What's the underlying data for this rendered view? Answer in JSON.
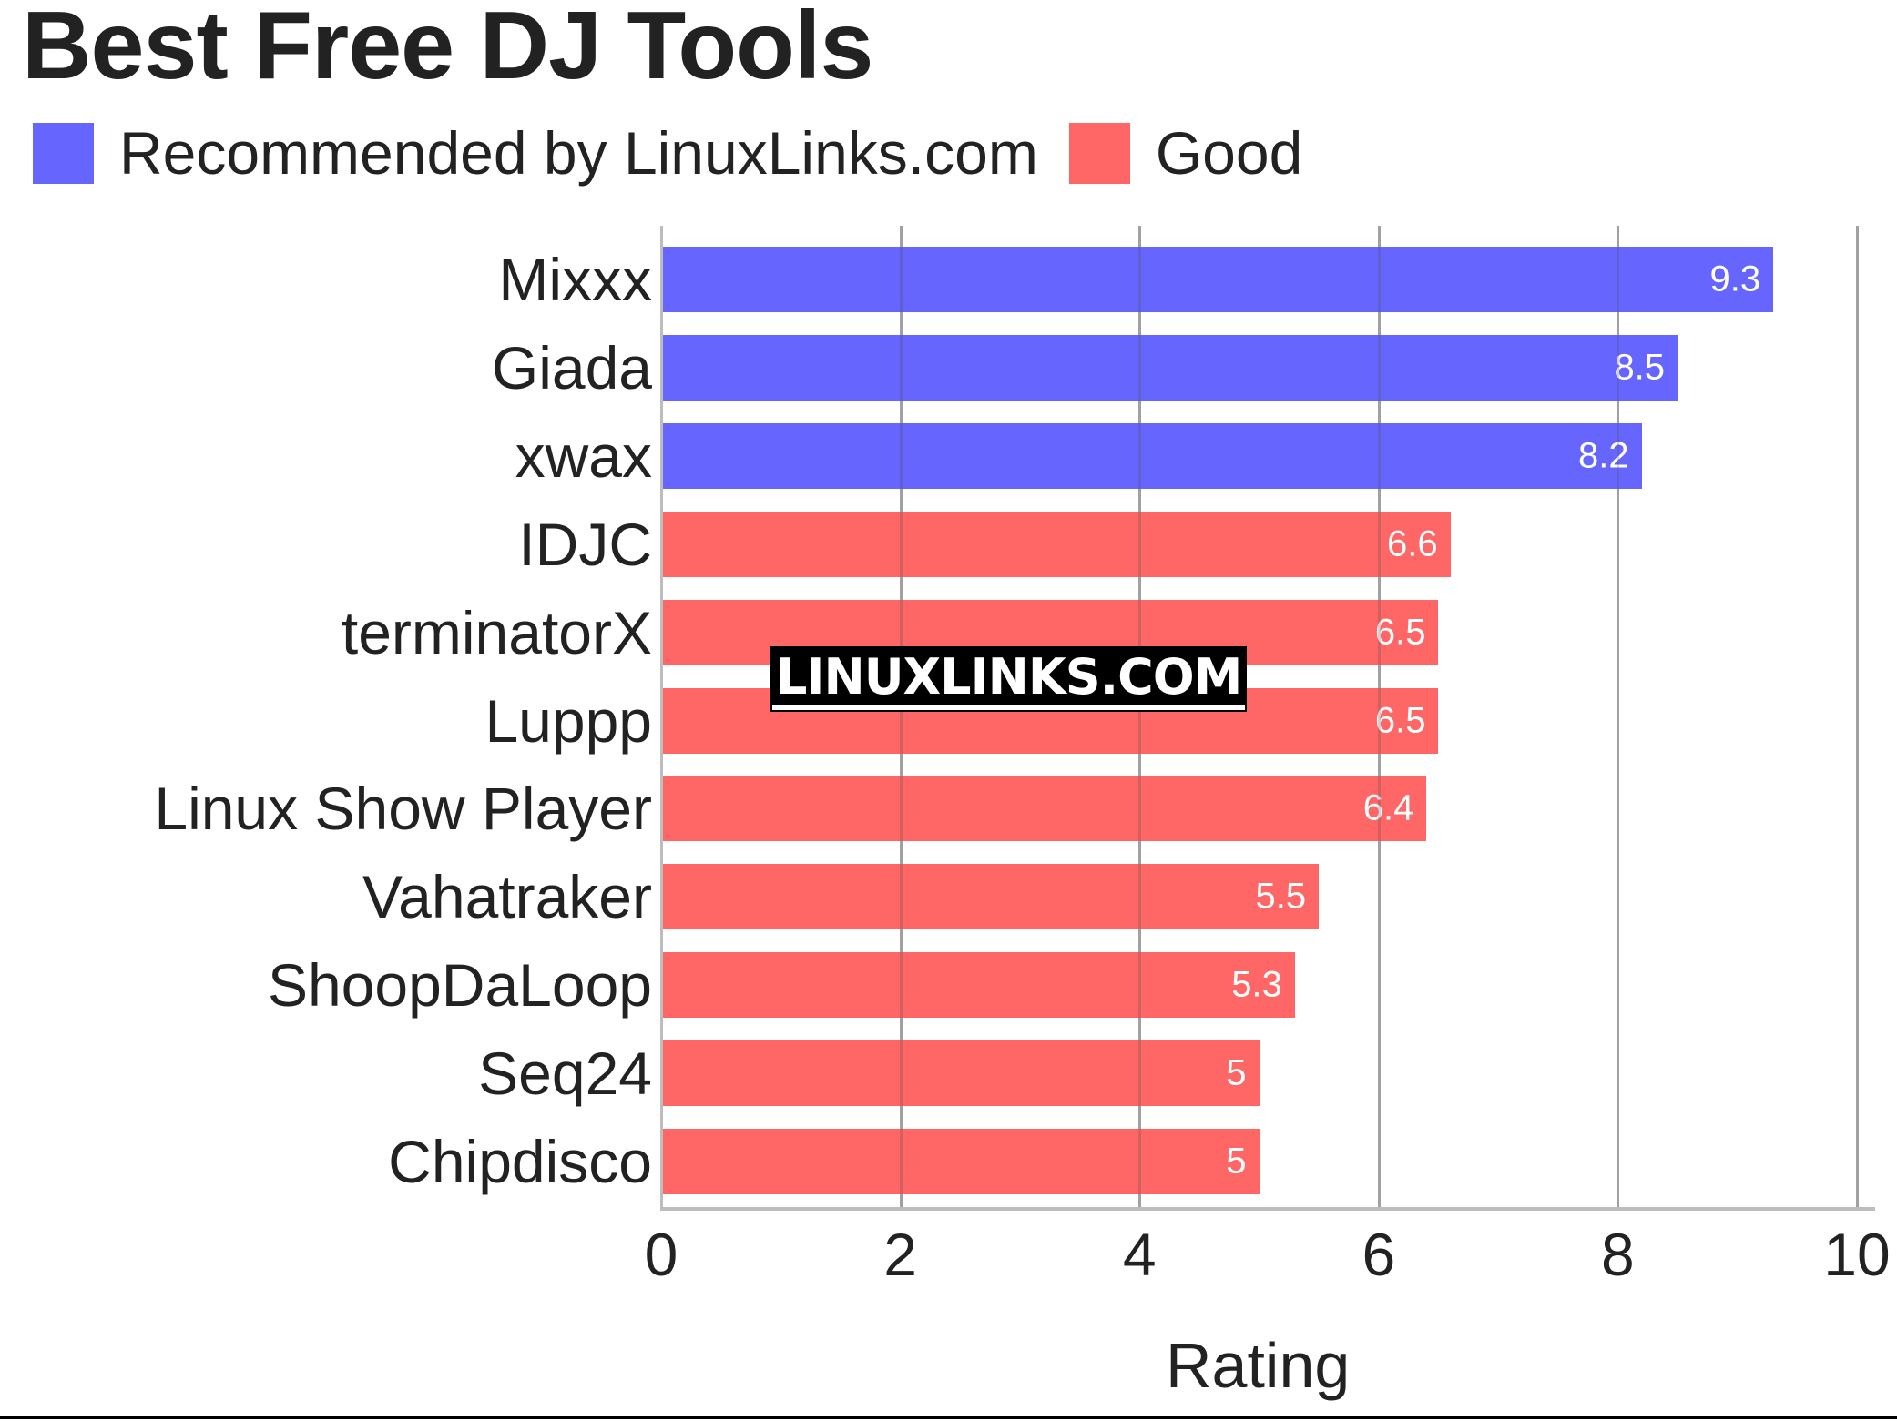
{
  "title": "Best Free DJ Tools",
  "legend": [
    {
      "label": "Recommended by LinuxLinks.com",
      "color": "#6666ff"
    },
    {
      "label": "Good",
      "color": "#ff6666"
    }
  ],
  "watermark": "LINUXLINKS.COM",
  "chart_data": {
    "type": "bar",
    "orientation": "horizontal",
    "title": "Best Free DJ Tools",
    "xlabel": "Rating",
    "ylabel": "",
    "xlim": [
      0,
      10
    ],
    "xticks": [
      "0",
      "2",
      "4",
      "6",
      "8",
      "10"
    ],
    "grid": true,
    "legend_position": "top-left",
    "categories": [
      "Mixxx",
      "Giada",
      "xwax",
      "IDJC",
      "terminatorX",
      "Luppp",
      "Linux Show Player",
      "Vahatraker",
      "ShoopDaLoop",
      "Seq24",
      "Chipdisco"
    ],
    "values": [
      9.3,
      8.5,
      8.2,
      6.6,
      6.5,
      6.5,
      6.4,
      5.5,
      5.3,
      5,
      5
    ],
    "value_labels": [
      "9.3",
      "8.5",
      "8.2",
      "6.6",
      "6.5",
      "6.5",
      "6.4",
      "5.5",
      "5.3",
      "5",
      "5"
    ],
    "series_membership": [
      "Recommended by LinuxLinks.com",
      "Recommended by LinuxLinks.com",
      "Recommended by LinuxLinks.com",
      "Good",
      "Good",
      "Good",
      "Good",
      "Good",
      "Good",
      "Good",
      "Good"
    ],
    "colors": {
      "Recommended by LinuxLinks.com": "#6666ff",
      "Good": "#ff6666"
    }
  }
}
